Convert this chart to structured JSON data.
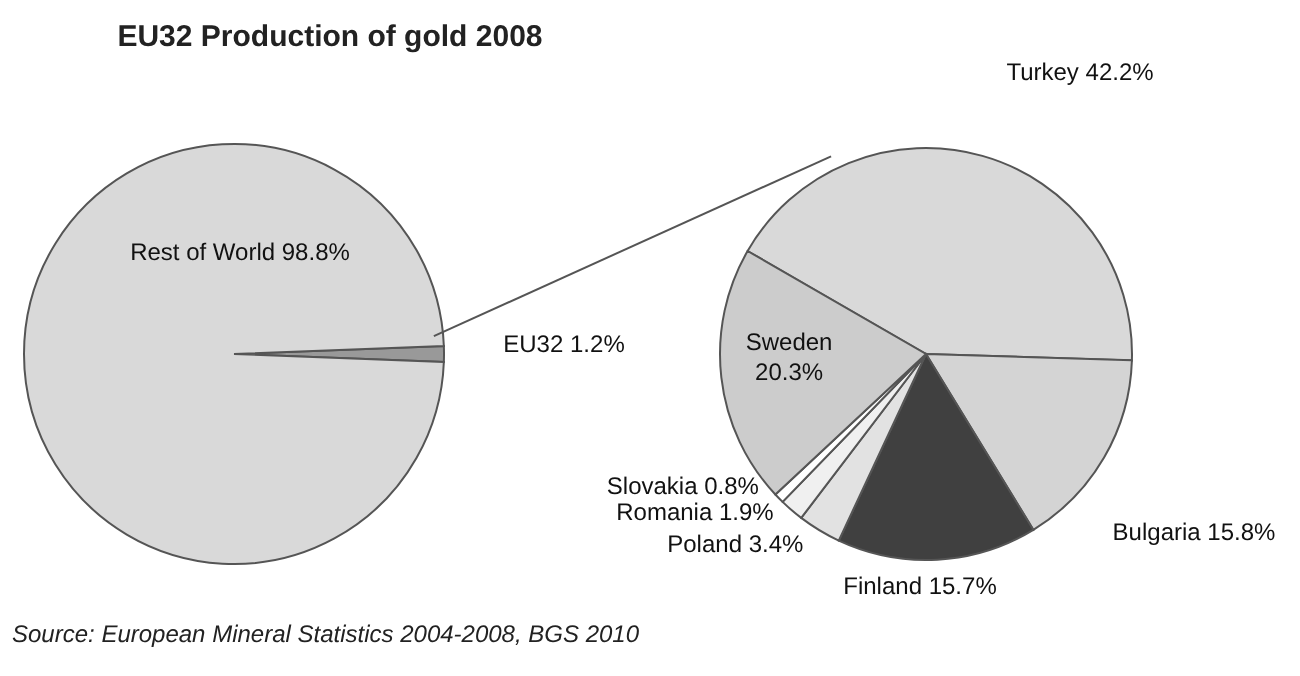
{
  "chart_data": [
    {
      "type": "pie",
      "title": "EU32 Production of gold 2008",
      "categories": [
        "EU32",
        "Rest of World"
      ],
      "values": [
        1.2,
        98.8
      ],
      "value_labels": [
        "1.2%",
        "98.8%"
      ],
      "colors": [
        "#999999",
        "#d9d9d9"
      ],
      "annotations": [
        "Source: European Mineral Statistics 2004-2008, BGS 2010"
      ]
    },
    {
      "type": "pie",
      "categories": [
        "Turkey",
        "Bulgaria",
        "Finland",
        "Poland",
        "Romania",
        "Slovakia",
        "Sweden"
      ],
      "values": [
        42.2,
        15.8,
        15.7,
        3.4,
        1.9,
        0.8,
        20.3
      ],
      "value_labels": [
        "42.2%",
        "15.8%",
        "15.7%",
        "3.4%",
        "1.9%",
        "0.8%",
        "20.3%"
      ],
      "colors": [
        "#d9d9d9",
        "#d4d4d4",
        "#404040",
        "#e2e2e2",
        "#f0f0f0",
        "#ffffff",
        "#cccccc"
      ]
    }
  ]
}
